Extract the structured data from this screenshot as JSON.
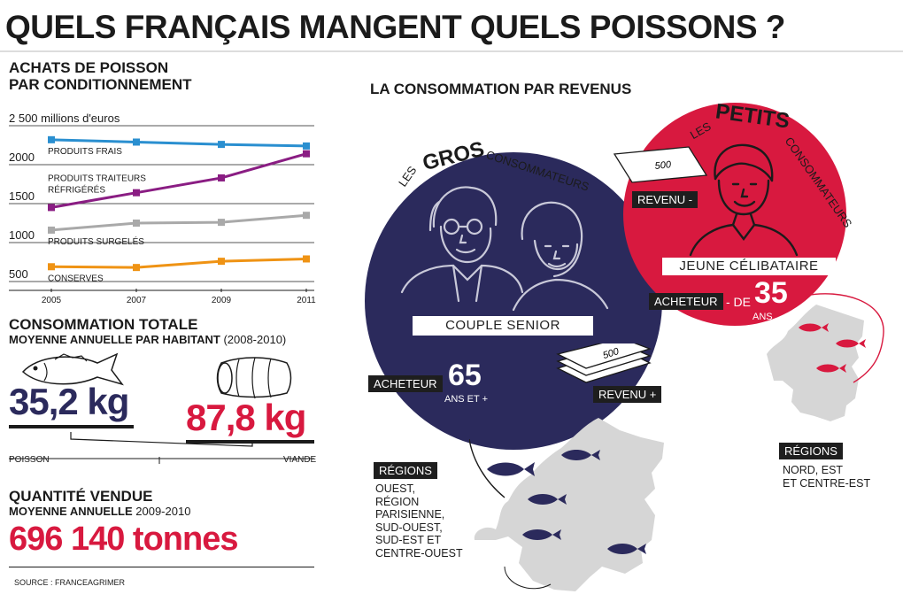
{
  "title": "QUELS FRANÇAIS MANGENT QUELS POISSONS ?",
  "colors": {
    "navy": "#2b2a5c",
    "red": "#d8193f",
    "blue": "#2a8fd0",
    "purple": "#8a1d83",
    "grey": "#a9a9a9",
    "orange": "#ef9314",
    "map": "#d6d6d6"
  },
  "achats": {
    "title_line1": "ACHATS DE POISSON",
    "title_line2": "PAR CONDITIONNEMENT",
    "unit_label": "2 500 millions d'euros",
    "y_ticks": [
      "2000",
      "1500",
      "1000",
      "500"
    ]
  },
  "chart_data": {
    "type": "line",
    "title": "ACHATS DE POISSON PAR CONDITIONNEMENT",
    "ylabel": "millions d'euros",
    "x": [
      "2005",
      "2007",
      "2009",
      "2011"
    ],
    "ylim": [
      500,
      2500
    ],
    "series": [
      {
        "name": "PRODUITS FRAIS",
        "color": "#2a8fd0",
        "values": [
          2320,
          2290,
          2260,
          2240
        ]
      },
      {
        "name": "PRODUITS TRAITEURS RÉFRIGÉRÉS",
        "color": "#8a1d83",
        "values": [
          1450,
          1640,
          1830,
          2140
        ]
      },
      {
        "name": "PRODUITS SURGELÉS",
        "color": "#a9a9a9",
        "values": [
          1160,
          1250,
          1260,
          1350
        ]
      },
      {
        "name": "CONSERVES",
        "color": "#ef9314",
        "values": [
          690,
          680,
          760,
          790
        ]
      }
    ],
    "series_label_lines": [
      [
        "PRODUITS FRAIS"
      ],
      [
        "PRODUITS TRAITEURS",
        "RÉFRIGÉRÉS"
      ],
      [
        "PRODUITS SURGELÉS"
      ],
      [
        "CONSERVES"
      ]
    ],
    "grid": true
  },
  "conso": {
    "title": "CONSOMMATION TOTALE",
    "sub_bold": "MOYENNE ANNUELLE PAR HABITANT",
    "sub_period": "(2008-2010)",
    "poisson_value": "35,2 kg",
    "viande_value": "87,8 kg",
    "poisson_label": "POISSON",
    "viande_label": "VIANDE",
    "chart_data": {
      "type": "bar",
      "categories": [
        "POISSON",
        "VIANDE"
      ],
      "values": [
        35.2,
        87.8
      ],
      "unit": "kg"
    }
  },
  "quantite": {
    "title": "QUANTITÉ VENDUE",
    "sub_bold": "MOYENNE ANNUELLE",
    "sub_period": "2009-2010",
    "value": "696 140 tonnes"
  },
  "source": "SOURCE : FRANCEAGRIMER",
  "revenus": {
    "title": "LA CONSOMMATION PAR REVENUS",
    "gros": {
      "les": "LES",
      "word": "GROS",
      "cons": "CONSOMMATEURS",
      "label": "COUPLE SENIOR",
      "acheteur": "ACHETEUR",
      "age": "65",
      "age_sub": "ANS ET +",
      "revenu": "REVENU +",
      "regions_tag": "RÉGIONS",
      "regions": [
        "OUEST,",
        "RÉGION",
        "PARISIENNE,",
        "SUD-OUEST,",
        "SUD-EST ET",
        "CENTRE-OUEST"
      ]
    },
    "petits": {
      "les": "LES",
      "word": "PETITS",
      "cons": "CONSOMMATEURS",
      "label": "JEUNE CÉLIBATAIRE",
      "acheteur": "ACHETEUR",
      "minus_de": "- DE",
      "age": "35",
      "age_sub": "ANS",
      "revenu": "REVENU -",
      "regions_tag": "RÉGIONS",
      "regions": [
        "NORD, EST",
        "ET CENTRE-EST"
      ]
    },
    "bill_value": "500"
  }
}
